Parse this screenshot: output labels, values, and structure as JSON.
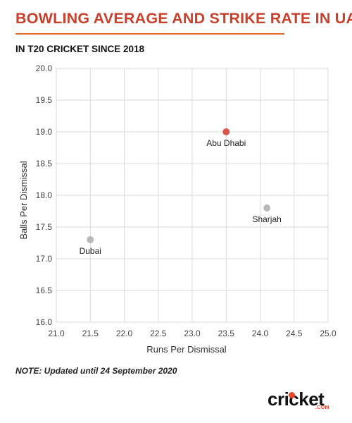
{
  "header": {
    "title": "BOWLING AVERAGE AND STRIKE RATE IN UAE",
    "subtitle": "IN T20 CRICKET SINCE 2018"
  },
  "chart_data": {
    "type": "scatter",
    "xlabel": "Runs Per Dismissal",
    "ylabel": "Balls Per Dismissal",
    "xlim": [
      21.0,
      25.0
    ],
    "ylim": [
      16.0,
      20.0
    ],
    "xticks": [
      "21.0",
      "21.5",
      "22.0",
      "22.5",
      "23.0",
      "23.5",
      "24.0",
      "24.5",
      "25.0"
    ],
    "yticks": [
      "16.0",
      "16.5",
      "17.0",
      "17.5",
      "18.0",
      "18.5",
      "19.0",
      "19.5",
      "20.0"
    ],
    "grid": true,
    "points": [
      {
        "label": "Abu Dhabi",
        "x": 23.5,
        "y": 19.0,
        "color": "#d9574a"
      },
      {
        "label": "Sharjah",
        "x": 24.1,
        "y": 17.8,
        "color": "#b9b9b9"
      },
      {
        "label": "Dubai",
        "x": 21.5,
        "y": 17.3,
        "color": "#b9b9b9"
      }
    ]
  },
  "footer": {
    "note": "NOTE: Updated until 24 September 2020",
    "logo_text": "cricket",
    "logo_sub": ".COM"
  },
  "colors": {
    "title": "#c8412c",
    "title_rule": "#e36c2c",
    "grid": "#d9d9d9",
    "highlight": "#d9574a",
    "muted": "#b9b9b9"
  }
}
